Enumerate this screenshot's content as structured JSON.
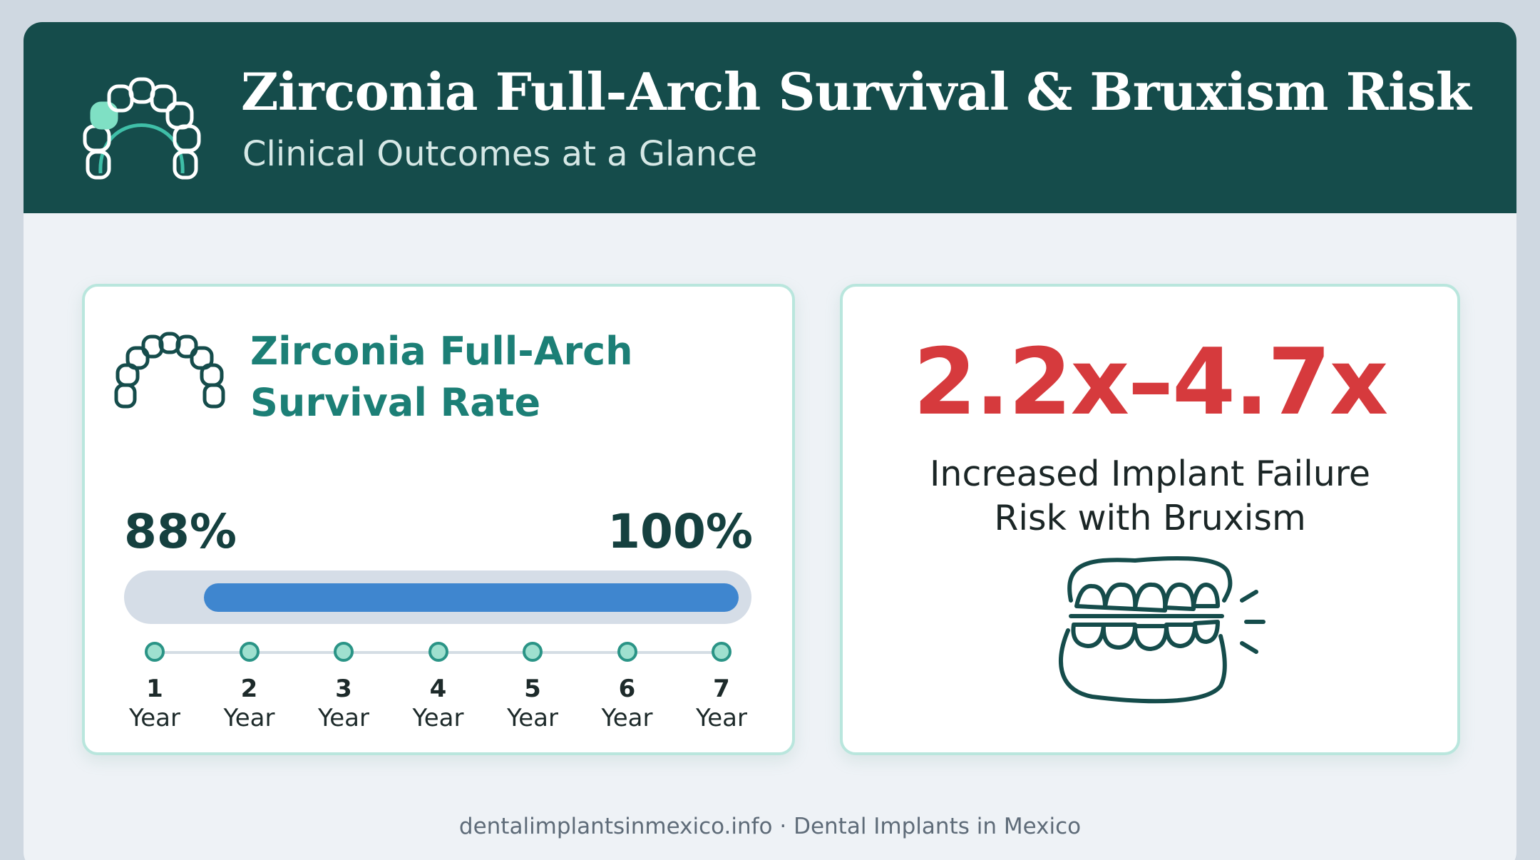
{
  "header": {
    "title": "Zirconia Full-Arch Survival & Bruxism Risk",
    "subtitle": "Clinical Outcomes at a Glance",
    "logo_icon": "dental-arch-icon"
  },
  "survival_card": {
    "icon": "dental-arch-icon",
    "title_line1": "Zirconia Full-Arch",
    "title_line2": "Survival Rate",
    "low_label": "88%",
    "high_label": "100%",
    "range_low_fraction": 0.88,
    "range_high_fraction": 1.0,
    "timeline": [
      {
        "num": "1",
        "label": "Year"
      },
      {
        "num": "2",
        "label": "Year"
      },
      {
        "num": "3",
        "label": "Year"
      },
      {
        "num": "4",
        "label": "Year"
      },
      {
        "num": "5",
        "label": "Year"
      },
      {
        "num": "6",
        "label": "Year"
      },
      {
        "num": "7",
        "label": "Year"
      }
    ]
  },
  "bruxism_card": {
    "stat": "2.2x–4.7x",
    "desc_line1": "Increased Implant Failure",
    "desc_line2": "Risk with Bruxism",
    "icon": "clenched-teeth-icon"
  },
  "footer": {
    "text": "dentalimplantsinmexico.info · Dental Implants in Mexico"
  },
  "colors": {
    "header_bg": "#154c4b",
    "accent_teal": "#1c7f76",
    "bar_blue": "#3f86cf",
    "stat_red": "#d63a3d"
  }
}
